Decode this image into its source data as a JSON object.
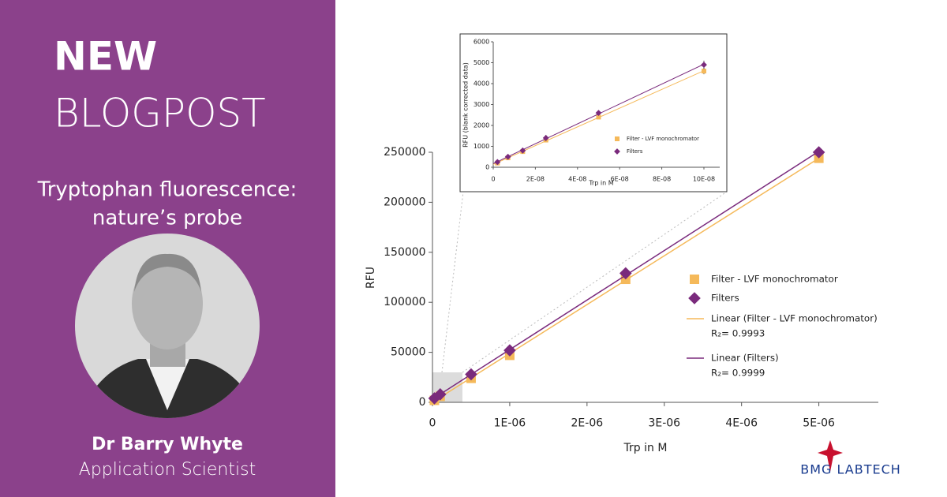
{
  "banner": {
    "title_1": "NEW",
    "title_2": "BLOGPOST",
    "subtitle_1": "Tryptophan fluorescence:",
    "subtitle_2": "nature’s probe",
    "author": "Dr Barry Whyte",
    "role": "Application Scientist",
    "logo": "BMG LABTECH"
  },
  "chart_data": [
    {
      "type": "scatter",
      "x_label": "Trp in M",
      "y_label": "RFU",
      "x": [
        2.5e-08,
        1e-07,
        5e-07,
        1e-06,
        2.5e-06,
        5e-06
      ],
      "xlim": [
        0,
        5.77e-06
      ],
      "xticks": [
        0,
        {
          "value": 1e-06,
          "label": "1E-06"
        },
        {
          "value": 2e-06,
          "label": "2E-06"
        },
        {
          "value": 3e-06,
          "label": "3E-06"
        },
        {
          "value": 4e-06,
          "label": "4E-06"
        },
        {
          "value": 5e-06,
          "label": "5E-06"
        }
      ],
      "ylim": [
        0,
        250000
      ],
      "yticks": [
        0,
        50000,
        100000,
        150000,
        200000,
        250000
      ],
      "series": [
        {
          "name": "Filter - LVF monochromator",
          "color": "#f5b95a",
          "marker": "square",
          "values": [
            2000,
            6000,
            24000,
            47000,
            123000,
            244000
          ],
          "trendline": {
            "name": "Linear (Filter - LVF monochromator)",
            "r2": "R₂= 0.9993"
          }
        },
        {
          "name": "Filters",
          "color": "#7a2a7c",
          "marker": "diamond",
          "values": [
            4000,
            8000,
            28000,
            52000,
            129000,
            250000
          ],
          "trendline": {
            "name": "Linear (Filters)",
            "r2": "R₂= 0.9999"
          }
        }
      ]
    },
    {
      "type": "scatter",
      "x_label": "Trp in M",
      "y_label": "RFU (blank corrected data)",
      "x": [
        2e-09,
        7e-09,
        1.4e-08,
        2.5e-08,
        5e-08,
        1e-07
      ],
      "xlim": [
        0,
        1.075e-07
      ],
      "xticks": [
        0,
        {
          "value": 2e-08,
          "label": "2E-08"
        },
        {
          "value": 4e-08,
          "label": "4E-08"
        },
        {
          "value": 6e-08,
          "label": "6E-08"
        },
        {
          "value": 8e-08,
          "label": "8E-08"
        },
        {
          "value": 1e-07,
          "label": "10E-08"
        }
      ],
      "ylim": [
        0,
        6000
      ],
      "yticks": [
        0,
        1000,
        2000,
        3000,
        4000,
        5000,
        6000
      ],
      "series": [
        {
          "name": "Filter - LVF monochromator",
          "color": "#f5b95a",
          "marker": "square",
          "values": [
            200,
            450,
            750,
            1300,
            2400,
            4600
          ],
          "errors": [
            20,
            20,
            20,
            80,
            80,
            150
          ],
          "fit": true
        },
        {
          "name": "Filters",
          "color": "#7a2a7c",
          "marker": "diamond",
          "values": [
            250,
            500,
            800,
            1400,
            2600,
            4900
          ],
          "errors": [
            30,
            30,
            30,
            150,
            120,
            200
          ],
          "fit": true
        }
      ]
    }
  ]
}
